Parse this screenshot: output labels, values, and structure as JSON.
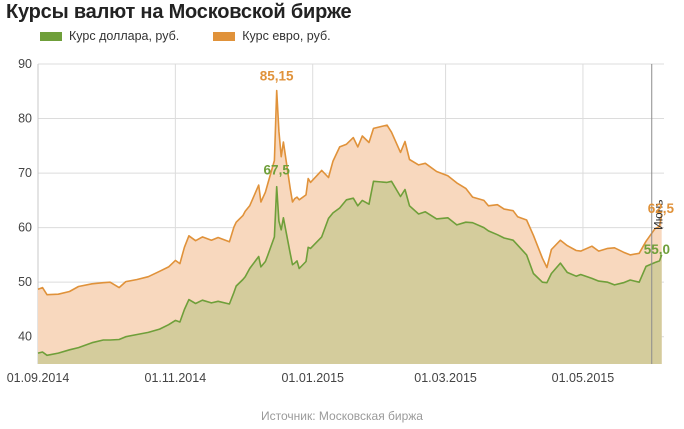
{
  "title": "Курсы валют на Московской бирже",
  "source": "Источник: Московская биржа",
  "chart_data": {
    "type": "area",
    "title": "Курсы валют на Московской бирже",
    "xlabel": "",
    "ylabel": "",
    "ylim": [
      35,
      90
    ],
    "y_ticks": [
      40,
      50,
      60,
      70,
      80,
      90
    ],
    "x_ticks": [
      "01.09.2014",
      "01.11.2014",
      "01.01.2015",
      "01.03.2015",
      "01.05.2015"
    ],
    "grid": true,
    "legend_position": "top-left",
    "marker_line": {
      "label": "Июнь"
    },
    "annotations": [
      {
        "text": "85,15",
        "series": "eur"
      },
      {
        "text": "67,5",
        "series": "usd"
      },
      {
        "text": "62,5",
        "series": "eur"
      },
      {
        "text": "55,0",
        "series": "usd"
      }
    ],
    "series": [
      {
        "name": "Курс евро, руб.",
        "key": "eur",
        "color": "#e0923a",
        "fill": "#f8d8be",
        "points": [
          [
            "2014-09-01",
            48.7
          ],
          [
            "2014-09-03",
            49.0
          ],
          [
            "2014-09-05",
            47.7
          ],
          [
            "2014-09-10",
            47.8
          ],
          [
            "2014-09-15",
            48.3
          ],
          [
            "2014-09-19",
            49.2
          ],
          [
            "2014-09-25",
            49.7
          ],
          [
            "2014-09-30",
            49.9
          ],
          [
            "2014-10-03",
            50.0
          ],
          [
            "2014-10-07",
            49.0
          ],
          [
            "2014-10-10",
            50.1
          ],
          [
            "2014-10-15",
            50.5
          ],
          [
            "2014-10-20",
            51.0
          ],
          [
            "2014-10-25",
            52.0
          ],
          [
            "2014-10-29",
            52.8
          ],
          [
            "2014-11-01",
            54.0
          ],
          [
            "2014-11-03",
            53.4
          ],
          [
            "2014-11-05",
            56.4
          ],
          [
            "2014-11-07",
            58.5
          ],
          [
            "2014-11-10",
            57.6
          ],
          [
            "2014-11-13",
            58.3
          ],
          [
            "2014-11-17",
            57.7
          ],
          [
            "2014-11-20",
            58.2
          ],
          [
            "2014-11-25",
            57.4
          ],
          [
            "2014-11-27",
            60.1
          ],
          [
            "2014-11-28",
            61.0
          ],
          [
            "2014-12-01",
            62.2
          ],
          [
            "2014-12-02",
            63.0
          ],
          [
            "2014-12-04",
            64.0
          ],
          [
            "2014-12-08",
            67.8
          ],
          [
            "2014-12-09",
            64.7
          ],
          [
            "2014-12-11",
            66.5
          ],
          [
            "2014-12-12",
            68.0
          ],
          [
            "2014-12-15",
            72.3
          ],
          [
            "2014-12-16",
            85.15
          ],
          [
            "2014-12-17",
            77.7
          ],
          [
            "2014-12-18",
            73.0
          ],
          [
            "2014-12-19",
            75.7
          ],
          [
            "2014-12-22",
            67.2
          ],
          [
            "2014-12-23",
            64.7
          ],
          [
            "2014-12-24",
            65.3
          ],
          [
            "2014-12-25",
            65.6
          ],
          [
            "2014-12-26",
            65.1
          ],
          [
            "2014-12-29",
            66.0
          ],
          [
            "2014-12-30",
            69.0
          ],
          [
            "2014-12-31",
            68.3
          ],
          [
            "2015-01-05",
            70.5
          ],
          [
            "2015-01-08",
            69.2
          ],
          [
            "2015-01-10",
            72.2
          ],
          [
            "2015-01-13",
            74.8
          ],
          [
            "2015-01-16",
            75.3
          ],
          [
            "2015-01-19",
            76.5
          ],
          [
            "2015-01-21",
            74.8
          ],
          [
            "2015-01-23",
            76.8
          ],
          [
            "2015-01-26",
            75.6
          ],
          [
            "2015-01-28",
            78.2
          ],
          [
            "2015-02-03",
            78.8
          ],
          [
            "2015-02-05",
            77.5
          ],
          [
            "2015-02-09",
            73.8
          ],
          [
            "2015-02-11",
            75.8
          ],
          [
            "2015-02-13",
            72.5
          ],
          [
            "2015-02-17",
            71.5
          ],
          [
            "2015-02-20",
            71.8
          ],
          [
            "2015-02-25",
            70.3
          ],
          [
            "2015-03-02",
            69.5
          ],
          [
            "2015-03-06",
            68.2
          ],
          [
            "2015-03-10",
            67.2
          ],
          [
            "2015-03-13",
            65.6
          ],
          [
            "2015-03-18",
            65.0
          ],
          [
            "2015-03-20",
            64.0
          ],
          [
            "2015-03-24",
            64.2
          ],
          [
            "2015-03-27",
            63.4
          ],
          [
            "2015-03-31",
            63.1
          ],
          [
            "2015-04-02",
            62.0
          ],
          [
            "2015-04-06",
            61.4
          ],
          [
            "2015-04-09",
            58.6
          ],
          [
            "2015-04-13",
            54.4
          ],
          [
            "2015-04-15",
            52.7
          ],
          [
            "2015-04-17",
            56.0
          ],
          [
            "2015-04-21",
            57.7
          ],
          [
            "2015-04-24",
            56.7
          ],
          [
            "2015-04-28",
            55.8
          ],
          [
            "2015-04-30",
            55.7
          ],
          [
            "2015-05-05",
            56.6
          ],
          [
            "2015-05-08",
            55.7
          ],
          [
            "2015-05-12",
            56.2
          ],
          [
            "2015-05-15",
            56.3
          ],
          [
            "2015-05-19",
            55.5
          ],
          [
            "2015-05-22",
            55.0
          ],
          [
            "2015-05-26",
            55.3
          ],
          [
            "2015-05-29",
            57.5
          ],
          [
            "2015-06-02",
            59.8
          ],
          [
            "2015-06-04",
            60.2
          ],
          [
            "2015-06-05",
            62.5
          ]
        ]
      },
      {
        "name": "Курс доллара, руб.",
        "key": "usd",
        "color": "#6f9f3a",
        "fill": "#d4cc9c",
        "points": [
          [
            "2014-09-01",
            37.0
          ],
          [
            "2014-09-03",
            37.2
          ],
          [
            "2014-09-05",
            36.6
          ],
          [
            "2014-09-10",
            37.0
          ],
          [
            "2014-09-15",
            37.6
          ],
          [
            "2014-09-19",
            38.0
          ],
          [
            "2014-09-25",
            38.9
          ],
          [
            "2014-09-30",
            39.4
          ],
          [
            "2014-10-03",
            39.4
          ],
          [
            "2014-10-07",
            39.5
          ],
          [
            "2014-10-10",
            40.0
          ],
          [
            "2014-10-15",
            40.4
          ],
          [
            "2014-10-20",
            40.8
          ],
          [
            "2014-10-25",
            41.4
          ],
          [
            "2014-10-29",
            42.2
          ],
          [
            "2014-11-01",
            43.0
          ],
          [
            "2014-11-03",
            42.7
          ],
          [
            "2014-11-05",
            45.0
          ],
          [
            "2014-11-07",
            46.8
          ],
          [
            "2014-11-10",
            46.1
          ],
          [
            "2014-11-13",
            46.7
          ],
          [
            "2014-11-17",
            46.2
          ],
          [
            "2014-11-20",
            46.5
          ],
          [
            "2014-11-25",
            46.0
          ],
          [
            "2014-11-27",
            48.1
          ],
          [
            "2014-11-28",
            49.3
          ],
          [
            "2014-12-01",
            50.5
          ],
          [
            "2014-12-02",
            51.0
          ],
          [
            "2014-12-04",
            52.5
          ],
          [
            "2014-12-08",
            54.7
          ],
          [
            "2014-12-09",
            52.8
          ],
          [
            "2014-12-11",
            53.8
          ],
          [
            "2014-12-12",
            54.9
          ],
          [
            "2014-12-15",
            58.3
          ],
          [
            "2014-12-16",
            67.5
          ],
          [
            "2014-12-17",
            61.2
          ],
          [
            "2014-12-18",
            59.6
          ],
          [
            "2014-12-19",
            61.8
          ],
          [
            "2014-12-22",
            55.3
          ],
          [
            "2014-12-23",
            53.2
          ],
          [
            "2014-12-24",
            53.5
          ],
          [
            "2014-12-25",
            53.9
          ],
          [
            "2014-12-26",
            52.5
          ],
          [
            "2014-12-29",
            53.8
          ],
          [
            "2014-12-30",
            56.4
          ],
          [
            "2014-12-31",
            56.2
          ],
          [
            "2015-01-05",
            58.3
          ],
          [
            "2015-01-08",
            61.7
          ],
          [
            "2015-01-10",
            62.7
          ],
          [
            "2015-01-13",
            63.6
          ],
          [
            "2015-01-16",
            65.1
          ],
          [
            "2015-01-19",
            65.4
          ],
          [
            "2015-01-21",
            64.0
          ],
          [
            "2015-01-23",
            65.0
          ],
          [
            "2015-01-26",
            64.3
          ],
          [
            "2015-01-28",
            68.5
          ],
          [
            "2015-02-03",
            68.3
          ],
          [
            "2015-02-05",
            68.5
          ],
          [
            "2015-02-09",
            65.7
          ],
          [
            "2015-02-11",
            67.0
          ],
          [
            "2015-02-13",
            64.0
          ],
          [
            "2015-02-17",
            62.5
          ],
          [
            "2015-02-20",
            62.9
          ],
          [
            "2015-02-25",
            61.6
          ],
          [
            "2015-03-02",
            61.8
          ],
          [
            "2015-03-06",
            60.5
          ],
          [
            "2015-03-10",
            61.0
          ],
          [
            "2015-03-13",
            60.9
          ],
          [
            "2015-03-18",
            60.0
          ],
          [
            "2015-03-20",
            59.4
          ],
          [
            "2015-03-24",
            58.7
          ],
          [
            "2015-03-27",
            58.1
          ],
          [
            "2015-03-31",
            57.7
          ],
          [
            "2015-04-02",
            56.8
          ],
          [
            "2015-04-06",
            55.0
          ],
          [
            "2015-04-09",
            51.6
          ],
          [
            "2015-04-13",
            50.0
          ],
          [
            "2015-04-15",
            49.9
          ],
          [
            "2015-04-17",
            51.6
          ],
          [
            "2015-04-21",
            53.5
          ],
          [
            "2015-04-24",
            51.8
          ],
          [
            "2015-04-28",
            51.1
          ],
          [
            "2015-04-30",
            51.4
          ],
          [
            "2015-05-05",
            50.7
          ],
          [
            "2015-05-08",
            50.2
          ],
          [
            "2015-05-12",
            50.0
          ],
          [
            "2015-05-15",
            49.5
          ],
          [
            "2015-05-19",
            49.9
          ],
          [
            "2015-05-22",
            50.4
          ],
          [
            "2015-05-26",
            50.0
          ],
          [
            "2015-05-29",
            52.9
          ],
          [
            "2015-06-02",
            53.6
          ],
          [
            "2015-06-04",
            53.9
          ],
          [
            "2015-06-05",
            55.0
          ]
        ]
      }
    ]
  }
}
